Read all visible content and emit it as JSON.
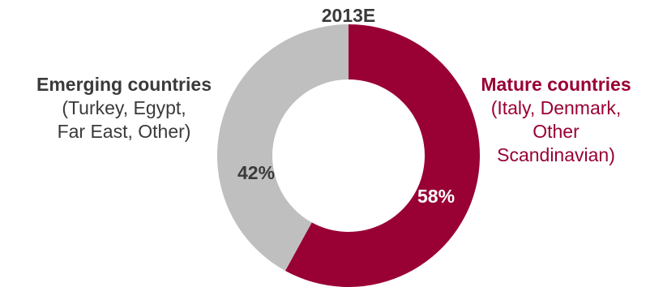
{
  "chart_data": {
    "type": "pie",
    "title": "2013E",
    "donut": true,
    "slices": [
      {
        "name": "Mature countries",
        "detail": "(Italy, Denmark,\nOther\nScandinavian)",
        "value": 58,
        "label": "58%",
        "color": "#990033",
        "label_color": "#990033",
        "pct_text_color": "#ffffff"
      },
      {
        "name": "Emerging countries",
        "detail": "(Turkey, Egypt,\nFar East, Other)",
        "value": 42,
        "label": "42%",
        "color": "#bfbfbf",
        "label_color": "#3a3a3a",
        "pct_text_color": "#3a3a3a"
      }
    ]
  }
}
